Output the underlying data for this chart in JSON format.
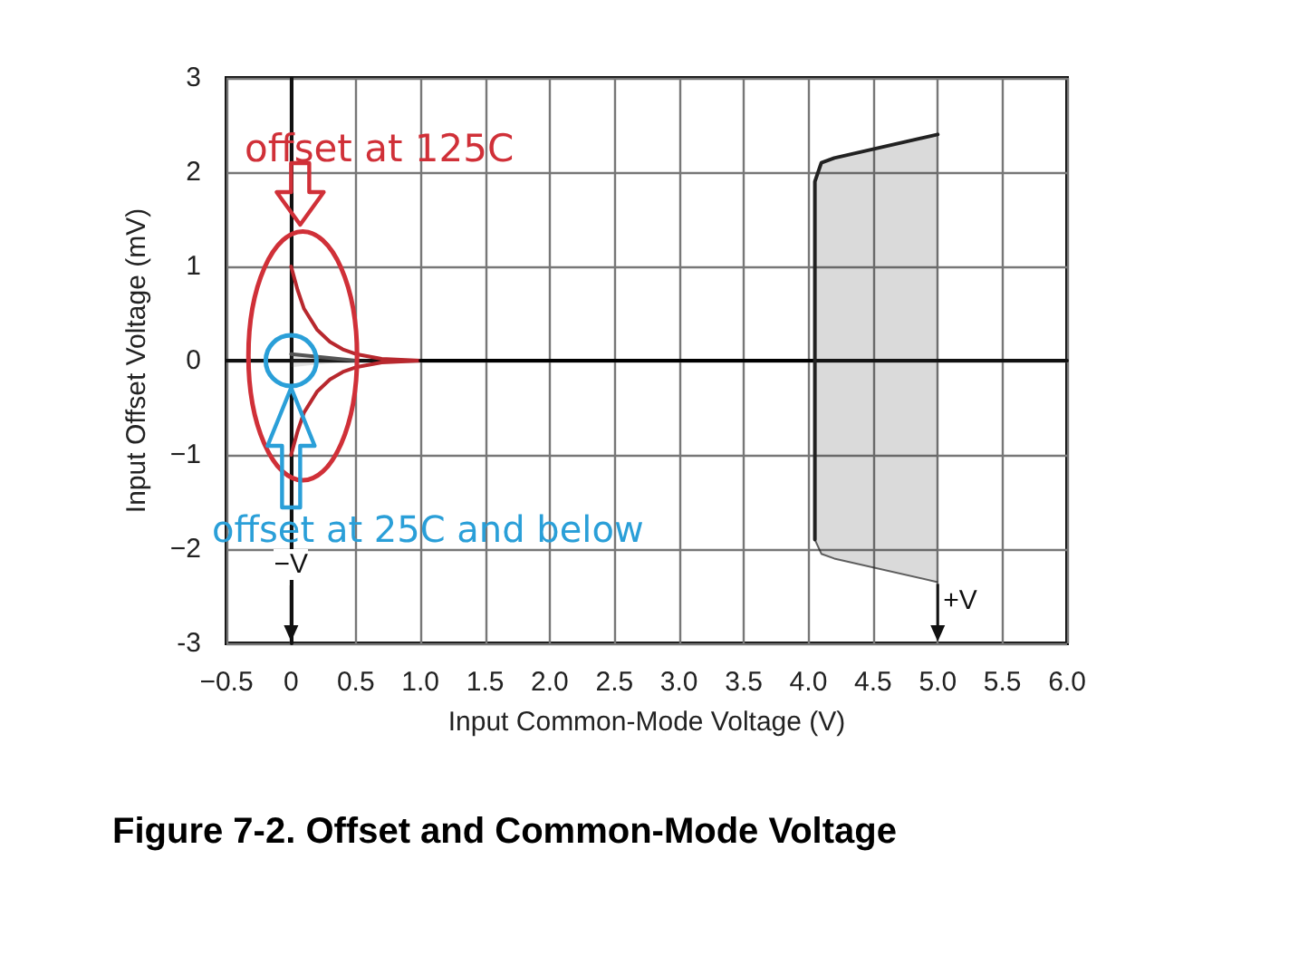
{
  "chart_data": {
    "type": "line",
    "title": "Figure 7-2. Offset and Common-Mode Voltage",
    "xlabel": "Input Common-Mode Voltage (V)",
    "ylabel": "Input Offset Voltage (mV)",
    "xlim": [
      -0.5,
      6.0
    ],
    "xticks": [
      {
        "value": -0.5,
        "label": "−0.5"
      },
      0,
      0.5,
      {
        "value": 1,
        "label": "1.0"
      },
      1.5,
      {
        "value": 2,
        "label": "2.0"
      },
      2.5,
      {
        "value": 3,
        "label": "3.0"
      },
      3.5,
      {
        "value": 4,
        "label": "4.0"
      },
      4.5,
      {
        "value": 5,
        "label": "5.0"
      },
      5.5,
      {
        "value": 6,
        "label": "6.0"
      }
    ],
    "ylim": [
      -3,
      3
    ],
    "yticks": [
      -3,
      {
        "value": -2,
        "label": "−2"
      },
      {
        "value": -1,
        "label": "−1"
      },
      0,
      1,
      2,
      3
    ],
    "grid": true,
    "marker": "none",
    "line_style": "solid",
    "series": [
      {
        "color": "#b8282e",
        "x": [
          0,
          0.05,
          0.1,
          0.2,
          0.3,
          0.4,
          0.5,
          0.7,
          1.0
        ],
        "values": [
          1,
          0.75,
          0.55,
          0.33,
          0.2,
          0.12,
          0.07,
          0.02,
          0
        ]
      },
      {
        "color": "#b8282e",
        "x": [
          0,
          0.05,
          0.1,
          0.2,
          0.3,
          0.4,
          0.5,
          0.7,
          1.0
        ],
        "values": [
          -1,
          -0.75,
          -0.55,
          -0.33,
          -0.2,
          -0.12,
          -0.07,
          -0.02,
          0
        ]
      },
      {
        "color": "#555555",
        "x": [
          0,
          0.5
        ],
        "values": [
          0.07,
          0
        ],
        "lower": [
          -0.07,
          0
        ],
        "upper": [
          0.07,
          0
        ]
      },
      {
        "color": "#000000",
        "x": [
          1.0,
          4.05
        ],
        "values": [
          0,
          0
        ]
      },
      {
        "color": "#222222",
        "x": [
          4.05,
          4.05,
          4.1,
          4.2,
          5.0
        ],
        "values": [
          -1.9,
          1.9,
          2.1,
          2.15,
          2.4
        ],
        "lower": [
          -1.9,
          -1.9,
          -2.05,
          -2.1,
          -2.35
        ],
        "upper": [
          -1.9,
          1.9,
          2.1,
          2.15,
          2.4
        ]
      }
    ],
    "annotations": [
      "offset at 125C",
      "offset at 25C and below",
      "−V",
      {
        "text": "+V",
        "x": 5,
        "y": -2.35
      }
    ]
  }
}
